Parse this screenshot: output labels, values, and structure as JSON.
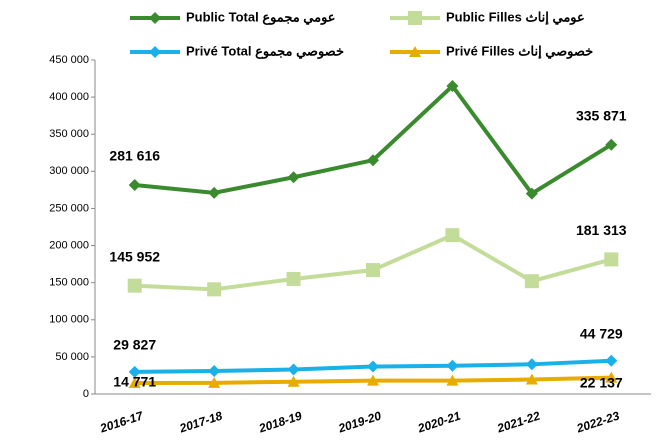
{
  "chart_data": {
    "type": "line",
    "categories": [
      "2016-17",
      "2017-18",
      "2018-19",
      "2019-20",
      "2020-21",
      "2021-22",
      "2022-23"
    ],
    "series": [
      {
        "name": "Public Total عومي مجموع",
        "color": "#3a8a2e",
        "marker": "diamond",
        "values": [
          281616,
          271000,
          292000,
          315000,
          415000,
          270000,
          335871
        ],
        "value_labels": [
          "281 616",
          null,
          null,
          null,
          null,
          null,
          "335 871"
        ]
      },
      {
        "name": "Public Filles عومي إناث",
        "color": "#c3dc9a",
        "marker": "square",
        "values": [
          145952,
          141000,
          155000,
          167000,
          214000,
          152000,
          181313
        ],
        "value_labels": [
          "145 952",
          null,
          null,
          null,
          null,
          null,
          "181 313"
        ]
      },
      {
        "name": "Privé Total خصوصي مجموع",
        "color": "#1ab0e8",
        "marker": "diamond",
        "values": [
          29827,
          31000,
          33000,
          37000,
          38000,
          40000,
          44729
        ],
        "value_labels": [
          "29 827",
          null,
          null,
          null,
          null,
          null,
          "44 729"
        ]
      },
      {
        "name": "Privé Filles خصوصي إناث",
        "color": "#e6ac00",
        "marker": "triangle",
        "values": [
          14771,
          15000,
          16500,
          18000,
          18000,
          19500,
          22137
        ],
        "value_labels": [
          "14 771",
          null,
          null,
          null,
          null,
          null,
          "22 137"
        ]
      }
    ],
    "ylim": [
      0,
      450000
    ],
    "yticks": [
      {
        "value": 0,
        "label": "0"
      },
      {
        "value": 50000,
        "label": "50 000"
      },
      {
        "value": 100000,
        "label": "100 000"
      },
      {
        "value": 150000,
        "label": "150 000"
      },
      {
        "value": 200000,
        "label": "200 000"
      },
      {
        "value": 250000,
        "label": "250 000"
      },
      {
        "value": 300000,
        "label": "300 000"
      },
      {
        "value": 350000,
        "label": "350 000"
      },
      {
        "value": 400000,
        "label": "400 000"
      },
      {
        "value": 450000,
        "label": "450 000"
      }
    ],
    "grid": false
  }
}
